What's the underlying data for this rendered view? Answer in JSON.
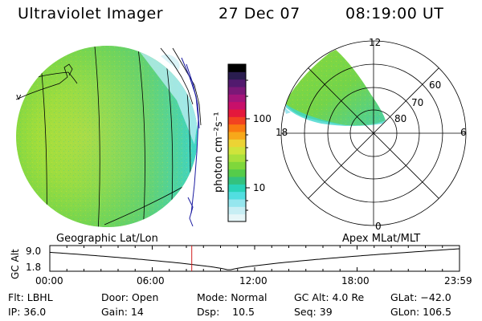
{
  "header": {
    "instrument": "Ultraviolet Imager",
    "date": "27 Dec 07",
    "time": "08:19:00 UT"
  },
  "colorbar": {
    "unit_label": "photon cm⁻²s⁻¹",
    "ticks": [
      "100",
      "10"
    ],
    "colors": [
      "#000000",
      "#2a1d4f",
      "#521a6e",
      "#7b1877",
      "#a5157a",
      "#c8106a",
      "#e4183c",
      "#f24320",
      "#f97a10",
      "#f7a81a",
      "#ecd334",
      "#cfe43b",
      "#a8e03b",
      "#7fd73b",
      "#55cc4a",
      "#33c27e",
      "#2ad3b8",
      "#52dee0",
      "#95e6ee",
      "#c7eef4",
      "#e6f6f8"
    ]
  },
  "left_panel": {
    "label": "Geographic Lat/Lon",
    "coast_marker": "v",
    "disk_color": "#9ddf3c",
    "limb_color": "#42d8c6"
  },
  "right_panel": {
    "label": "Apex MLat/MLT",
    "mlt_labels": {
      "top": "12",
      "left": "18",
      "right": "6",
      "bottom": "0"
    },
    "mlat_labels": [
      "60",
      "70",
      "80"
    ]
  },
  "timeline": {
    "y_axis_label": "GC Alt",
    "y_ticks": [
      "9.0",
      "1.8"
    ],
    "x_ticks": [
      "00:00",
      "06:00",
      "12:00",
      "18:00",
      "23:59"
    ],
    "current_time_hours": 8.3167,
    "marker_color": "#d22020"
  },
  "footer": {
    "row1": [
      "Flt: LBHL",
      "Door: Open",
      "Mode: Normal",
      "GC Alt: 4.0 Re",
      "GLat: −42.0"
    ],
    "row2": [
      "IP: 36.0",
      "Gain: 14",
      "Dsp:    10.5",
      "Seq: 39",
      "GLon: 106.5"
    ]
  }
}
